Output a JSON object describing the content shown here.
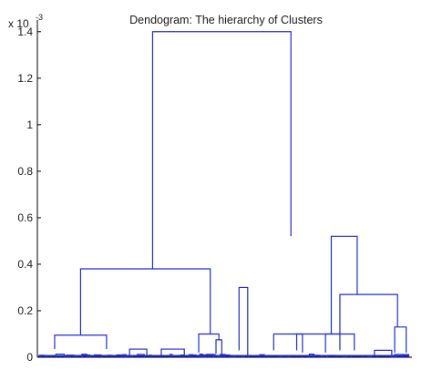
{
  "chart_data": {
    "type": "dendrogram",
    "title": "Dendogram: The hierarchy of Clusters",
    "y_exponent_base": "x 10",
    "y_exponent_power": "-3",
    "ylim": [
      0,
      1.45
    ],
    "xlim": [
      0,
      130
    ],
    "yticks": [
      {
        "value": 0,
        "label": "0"
      },
      {
        "value": 0.2,
        "label": "0.2"
      },
      {
        "value": 0.4,
        "label": "0.4"
      },
      {
        "value": 0.6,
        "label": "0.6"
      },
      {
        "value": 0.8,
        "label": "0.8"
      },
      {
        "value": 1.0,
        "label": "1"
      },
      {
        "value": 1.2,
        "label": "1.2"
      },
      {
        "value": 1.4,
        "label": "1.4"
      }
    ],
    "grid": false,
    "line_color": "#1f2bd6",
    "links": [
      {
        "x1": 40,
        "x2": 88,
        "h1": 0.38,
        "h2": 0.52,
        "height": 1.4
      },
      {
        "x1": 6,
        "x2": 24,
        "h1": 0.035,
        "h2": 0.035,
        "height": 0.095
      },
      {
        "x1": 15,
        "x2": 60,
        "h1": 0.095,
        "h2": 0.1,
        "height": 0.38
      },
      {
        "x1": 32,
        "x2": 38,
        "h1": 0.01,
        "h2": 0.01,
        "height": 0.035
      },
      {
        "x1": 43,
        "x2": 51,
        "h1": 0.01,
        "h2": 0.01,
        "height": 0.035
      },
      {
        "x1": 62,
        "x2": 64,
        "h1": 0.015,
        "h2": 0.01,
        "height": 0.075
      },
      {
        "x1": 56,
        "x2": 63,
        "h1": 0.02,
        "h2": 0.075,
        "height": 0.1
      },
      {
        "x1": 70,
        "x2": 73,
        "h1": 0.03,
        "h2": 0.01,
        "height": 0.3
      },
      {
        "x1": 82,
        "x2": 92,
        "h1": 0.03,
        "h2": 0.02,
        "height": 0.1
      },
      {
        "x1": 90,
        "x2": 105,
        "h1": 0.03,
        "h2": 0.03,
        "height": 0.1
      },
      {
        "x1": 102,
        "x2": 111,
        "h1": 0.1,
        "h2": 0.27,
        "height": 0.52
      },
      {
        "x1": 100,
        "x2": 110,
        "h1": 0.02,
        "h2": 0.03,
        "height": 0.1
      },
      {
        "x1": 105,
        "x2": 125,
        "h1": 0.1,
        "h2": 0.13,
        "height": 0.27
      },
      {
        "x1": 117,
        "x2": 123,
        "h1": 0.01,
        "h2": 0.01,
        "height": 0.03
      },
      {
        "x1": 124,
        "x2": 128,
        "h1": 0.02,
        "h2": 0.02,
        "height": 0.13
      }
    ]
  }
}
